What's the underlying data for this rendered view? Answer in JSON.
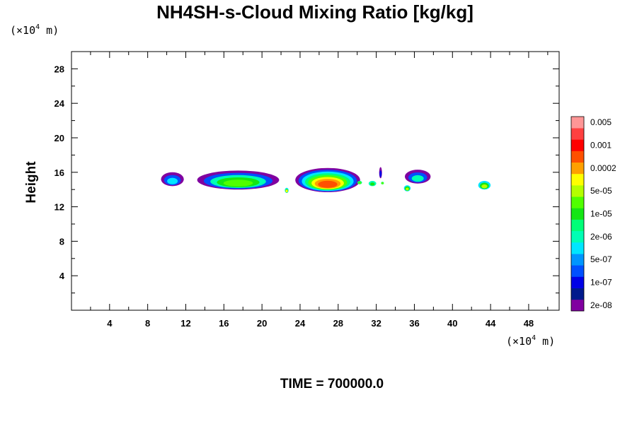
{
  "chart_data": {
    "type": "heatmap",
    "title": "NH4SH-s-Cloud Mixing Ratio [kg/kg]",
    "ylabel": "Height",
    "x_unit": {
      "prefix": "(×10",
      "exp": "4",
      "suffix": " m)"
    },
    "y_unit": {
      "prefix": "(×10",
      "exp": "4",
      "suffix": " m)"
    },
    "xlim": [
      0,
      51.2
    ],
    "ylim": [
      0,
      30.0
    ],
    "x_ticks": [
      4,
      8,
      12,
      16,
      20,
      24,
      28,
      32,
      36,
      40,
      44,
      48
    ],
    "x_minor_step": 2,
    "y_ticks": [
      4,
      8,
      12,
      16,
      20,
      24,
      28
    ],
    "y_minor_step": 2,
    "footer": "TIME = 700000.0",
    "colorbar": {
      "colors": [
        "#8000a0",
        "#001a8c",
        "#0000e6",
        "#0050ff",
        "#0096ff",
        "#00e6ff",
        "#00ffb4",
        "#00ff78",
        "#14e614",
        "#50ff00",
        "#b4ff00",
        "#ffff00",
        "#ffa000",
        "#ff5000",
        "#ff0000",
        "#ff4040",
        "#ff9696"
      ],
      "labels": [
        "2e-08",
        "1e-07",
        "5e-07",
        "2e-06",
        "1e-05",
        "5e-05",
        "0.0002",
        "0.001",
        "0.005"
      ]
    },
    "features": [
      {
        "x": [
          9.4,
          11.8
        ],
        "y": [
          14.4,
          16.0
        ],
        "layers": [
          0,
          3,
          5
        ]
      },
      {
        "x": [
          13.2,
          21.8
        ],
        "y": [
          14.0,
          16.2
        ],
        "layers": [
          0,
          3,
          6,
          8,
          9
        ]
      },
      {
        "x": [
          22.4,
          22.8
        ],
        "y": [
          13.6,
          14.2
        ],
        "layers": [
          5,
          9,
          11
        ]
      },
      {
        "x": [
          23.5,
          30.3
        ],
        "y": [
          13.7,
          16.5
        ],
        "layers": [
          0,
          3,
          5,
          7,
          9,
          11,
          12,
          13
        ]
      },
      {
        "x": [
          30.0,
          30.5
        ],
        "y": [
          14.6,
          15.0
        ],
        "layers": [
          7,
          9
        ]
      },
      {
        "x": [
          31.2,
          32.0
        ],
        "y": [
          14.4,
          15.0
        ],
        "layers": [
          6,
          8
        ]
      },
      {
        "x": [
          32.3,
          32.6
        ],
        "y": [
          15.3,
          16.6
        ],
        "layers": [
          0,
          2
        ]
      },
      {
        "x": [
          32.5,
          32.8
        ],
        "y": [
          14.6,
          14.9
        ],
        "layers": [
          7,
          9
        ]
      },
      {
        "x": [
          34.9,
          35.6
        ],
        "y": [
          13.8,
          14.5
        ],
        "layers": [
          5,
          8,
          10
        ]
      },
      {
        "x": [
          35.0,
          37.7
        ],
        "y": [
          14.7,
          16.3
        ],
        "layers": [
          0,
          3,
          6
        ]
      },
      {
        "x": [
          42.7,
          44.0
        ],
        "y": [
          14.0,
          15.0
        ],
        "layers": [
          5,
          8,
          10
        ]
      }
    ]
  }
}
